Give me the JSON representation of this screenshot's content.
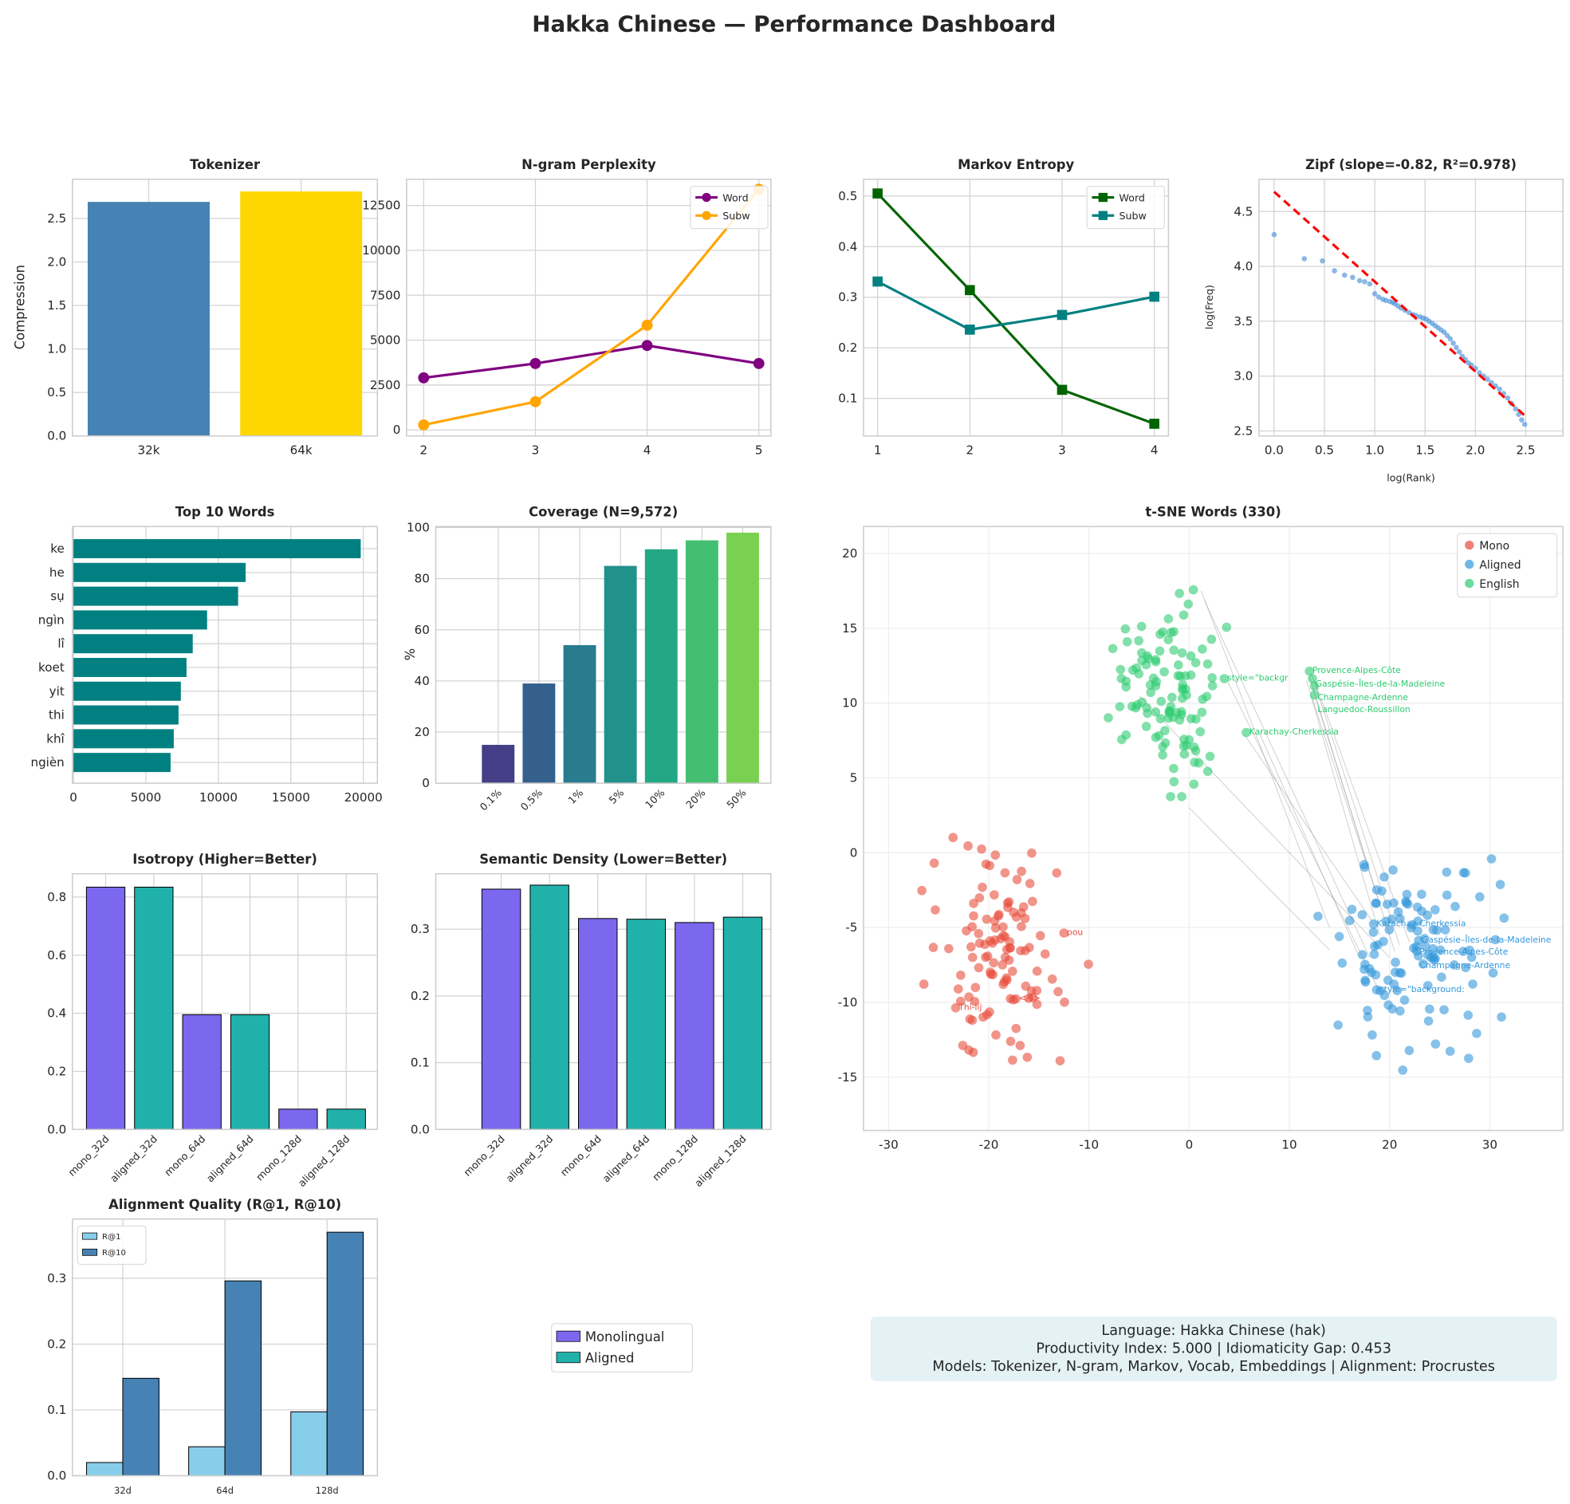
{
  "title": "Hakka Chinese — Performance Dashboard",
  "colors": {
    "grid": "#d3d3d3",
    "frame": "#cccccc"
  },
  "chart_data": [
    {
      "type": "bar",
      "title": "Tokenizer",
      "ylabel": "Compression",
      "categories": [
        "32k",
        "64k"
      ],
      "values": [
        2.69,
        2.81
      ],
      "colors": [
        "#4682b4",
        "#ffd700"
      ],
      "yticks": [
        "0.0",
        "0.5",
        "1.0",
        "1.5",
        "2.0",
        "2.5"
      ],
      "ylim": [
        0,
        2.95
      ],
      "grid": true
    },
    {
      "type": "line",
      "title": "N-gram Perplexity",
      "x": [
        2,
        3,
        4,
        5
      ],
      "series": [
        {
          "name": "Word",
          "values": [
            2900,
            3700,
            4700,
            3700
          ],
          "color": "#800080",
          "marker": "circle"
        },
        {
          "name": "Subw",
          "values": [
            280,
            1570,
            5830,
            13400
          ],
          "color": "#ffa500",
          "marker": "circle"
        }
      ],
      "xticks": [
        "2",
        "3",
        "4",
        "5"
      ],
      "yticks": [
        "0",
        "2500",
        "5000",
        "7500",
        "10000",
        "12500"
      ],
      "legend": "top-right",
      "grid": true
    },
    {
      "type": "line",
      "title": "Markov Entropy",
      "x": [
        1,
        2,
        3,
        4
      ],
      "series": [
        {
          "name": "Word",
          "values": [
            0.505,
            0.314,
            0.117,
            0.05
          ],
          "color": "#006400",
          "marker": "square"
        },
        {
          "name": "Subw",
          "values": [
            0.331,
            0.236,
            0.265,
            0.301
          ],
          "color": "#008080",
          "marker": "square"
        }
      ],
      "xticks": [
        "1",
        "2",
        "3",
        "4"
      ],
      "yticks": [
        "0.1",
        "0.2",
        "0.3",
        "0.4",
        "0.5"
      ],
      "legend": "top-right",
      "grid": true
    },
    {
      "type": "scatter",
      "title": "Zipf (slope=-0.82, R²=0.978)",
      "xlabel": "log(Rank)",
      "ylabel": "log(Freq)",
      "points": [
        [
          0,
          4.29
        ],
        [
          0.3,
          4.07
        ],
        [
          0.48,
          4.05
        ],
        [
          0.6,
          3.96
        ],
        [
          0.7,
          3.92
        ],
        [
          0.78,
          3.9
        ],
        [
          0.85,
          3.87
        ],
        [
          0.9,
          3.86
        ],
        [
          0.95,
          3.84
        ],
        [
          1.0,
          3.75
        ],
        [
          1.04,
          3.72
        ],
        [
          1.08,
          3.7
        ],
        [
          1.11,
          3.69
        ],
        [
          1.15,
          3.68
        ],
        [
          1.18,
          3.67
        ],
        [
          1.2,
          3.66
        ],
        [
          1.23,
          3.64
        ],
        [
          1.26,
          3.62
        ],
        [
          1.3,
          3.6
        ],
        [
          1.34,
          3.58
        ],
        [
          1.38,
          3.56
        ],
        [
          1.41,
          3.55
        ],
        [
          1.45,
          3.54
        ],
        [
          1.48,
          3.53
        ],
        [
          1.51,
          3.52
        ],
        [
          1.54,
          3.5
        ],
        [
          1.57,
          3.48
        ],
        [
          1.6,
          3.46
        ],
        [
          1.63,
          3.44
        ],
        [
          1.66,
          3.42
        ],
        [
          1.69,
          3.4
        ],
        [
          1.72,
          3.37
        ],
        [
          1.75,
          3.34
        ],
        [
          1.78,
          3.3
        ],
        [
          1.81,
          3.26
        ],
        [
          1.84,
          3.22
        ],
        [
          1.87,
          3.18
        ],
        [
          1.9,
          3.15
        ],
        [
          1.93,
          3.12
        ],
        [
          1.96,
          3.1
        ],
        [
          2.0,
          3.07
        ],
        [
          2.04,
          3.03
        ],
        [
          2.08,
          3.0
        ],
        [
          2.12,
          2.97
        ],
        [
          2.16,
          2.94
        ],
        [
          2.2,
          2.91
        ],
        [
          2.24,
          2.88
        ],
        [
          2.28,
          2.84
        ],
        [
          2.32,
          2.8
        ],
        [
          2.36,
          2.75
        ],
        [
          2.4,
          2.7
        ],
        [
          2.43,
          2.65
        ],
        [
          2.46,
          2.6
        ],
        [
          2.49,
          2.56
        ]
      ],
      "point_color": "#4a90d9",
      "fit_line": {
        "x": [
          0,
          2.49
        ],
        "y": [
          4.68,
          2.64
        ],
        "color": "#ff0000",
        "style": "dashed"
      },
      "xticks": [
        "0.0",
        "0.5",
        "1.0",
        "1.5",
        "2.0",
        "2.5"
      ],
      "yticks": [
        "2.5",
        "3.0",
        "3.5",
        "4.0",
        "4.5"
      ],
      "grid": true
    },
    {
      "type": "bar",
      "orientation": "horizontal",
      "title": "Top 10 Words",
      "categories": [
        "ke",
        "he",
        "sụ",
        "ngìn",
        "lî",
        "koet",
        "yit",
        "thi",
        "khî",
        "ngièn"
      ],
      "values": [
        19820,
        11880,
        11360,
        9220,
        8230,
        7800,
        7410,
        7250,
        6920,
        6700
      ],
      "color": "#008080",
      "xticks": [
        "0",
        "5000",
        "10000",
        "15000",
        "20000"
      ],
      "grid": true
    },
    {
      "type": "bar",
      "title": "Coverage (N=9,572)",
      "ylabel": "%",
      "categories": [
        "0.1%",
        "0.5%",
        "1%",
        "5%",
        "10%",
        "20%",
        "50%"
      ],
      "values": [
        15,
        39,
        54,
        85,
        91.5,
        95,
        98
      ],
      "colors": [
        "#433e85",
        "#35608d",
        "#297b8e",
        "#21918c",
        "#22a884",
        "#43bf71",
        "#7ad151"
      ],
      "yticks": [
        "0",
        "20",
        "40",
        "60",
        "80",
        "100"
      ],
      "ylim": [
        0,
        100
      ],
      "grid": true
    },
    {
      "type": "scatter",
      "title": "t-SNE Words (330)",
      "clusters": [
        {
          "name": "Mono",
          "color": "#e74c3c",
          "count": 110,
          "x_range": [
            -29,
            -9
          ],
          "y_range": [
            -17,
            3
          ]
        },
        {
          "name": "Aligned",
          "color": "#3498db",
          "count": 110,
          "x_range": [
            10,
            34
          ],
          "y_range": [
            -15,
            3
          ]
        },
        {
          "name": "English",
          "color": "#2ecc71",
          "count": 110,
          "x_range": [
            -9,
            5
          ],
          "y_range": [
            1,
            20
          ]
        }
      ],
      "annotations": [
        {
          "text": "style=\"backgr",
          "x": 3.8,
          "y": 11.5,
          "cluster": 2
        },
        {
          "text": "Provence-Alpes-Côte",
          "x": 12.3,
          "y": 12.0,
          "cluster": 2
        },
        {
          "text": "Gaspésie–Îles-de-la-Madeleine",
          "x": 12.6,
          "y": 11.5,
          "cluster": 2
        },
        {
          "text": "Champagne-Ardenne",
          "x": 12.8,
          "y": 11.0,
          "cluster": 2
        },
        {
          "text": "Languedoc-Roussillon",
          "x": 12.8,
          "y": 10.4,
          "cluster": 2
        },
        {
          "text": "Karachay-Cherkessia",
          "x": 6.0,
          "y": 7.9,
          "cluster": 2
        },
        {
          "text": "Karachay-Cherkessia",
          "x": 18.7,
          "y": -4.9,
          "cluster": 1
        },
        {
          "text": "Gaspésie–Îles-de-la-Madeleine",
          "x": 23.2,
          "y": -6.0,
          "cluster": 1
        },
        {
          "text": "Provence-Alpes-Côte",
          "x": 23.0,
          "y": -6.4,
          "cluster": 1
        },
        {
          "text": "Champagne-Ardenne",
          "x": 23.0,
          "y": -6.7,
          "cluster": 1
        },
        {
          "text": "style=\"background:",
          "x": 19.0,
          "y": -9.3,
          "cluster": 1
        },
        {
          "text": "Thi-lij",
          "x": -23.0,
          "y": -10.5,
          "cluster": 0
        },
        {
          "text": "</s>",
          "x": -17.0,
          "y": -9.9,
          "cluster": 0
        },
        {
          "text": "pou",
          "x": -12.2,
          "y": -5.5,
          "cluster": 0
        }
      ],
      "links": [
        [
          [
            1.2,
            17.5
          ],
          [
            14,
            -5
          ]
        ],
        [
          [
            1.5,
            16.9
          ],
          [
            18,
            -7
          ]
        ],
        [
          [
            3.8,
            11.5
          ],
          [
            19,
            -9.3
          ]
        ],
        [
          [
            5.5,
            7.9
          ],
          [
            18.5,
            -4.8
          ]
        ],
        [
          [
            -5,
            10.5
          ],
          [
            20,
            -7
          ]
        ],
        [
          [
            12.2,
            12.0
          ],
          [
            21,
            -6.2
          ]
        ],
        [
          [
            12.5,
            11.5
          ],
          [
            22,
            -6.0
          ]
        ],
        [
          [
            12.3,
            11.0
          ],
          [
            20.5,
            -6.6
          ]
        ],
        [
          [
            12.2,
            10.4
          ],
          [
            19,
            -5.5
          ]
        ],
        [
          [
            12.0,
            11.8
          ],
          [
            17.8,
            -0.8
          ]
        ],
        [
          [
            7,
            8
          ],
          [
            17,
            -7
          ]
        ],
        [
          [
            11.7,
            11.5
          ],
          [
            18.8,
            -3
          ]
        ],
        [
          [
            0,
            3
          ],
          [
            14,
            -6.5
          ]
        ]
      ],
      "xticks": [
        "-30",
        "-20",
        "-10",
        "0",
        "10",
        "20",
        "30"
      ],
      "yticks": [
        "-15",
        "-10",
        "-5",
        "0",
        "5",
        "10",
        "15",
        "20"
      ],
      "legend": "top-right",
      "grid": true
    },
    {
      "type": "bar",
      "title": "Isotropy (Higher=Better)",
      "categories": [
        "mono_32d",
        "aligned_32d",
        "mono_64d",
        "aligned_64d",
        "mono_128d",
        "aligned_128d"
      ],
      "values": [
        0.834,
        0.834,
        0.395,
        0.395,
        0.07,
        0.07
      ],
      "colors": [
        "#7b68ee",
        "#20b2aa",
        "#7b68ee",
        "#20b2aa",
        "#7b68ee",
        "#20b2aa"
      ],
      "yticks": [
        "0.0",
        "0.2",
        "0.4",
        "0.6",
        "0.8"
      ],
      "grid": true
    },
    {
      "type": "bar",
      "title": "Semantic Density (Lower=Better)",
      "categories": [
        "mono_32d",
        "aligned_32d",
        "mono_64d",
        "aligned_64d",
        "mono_128d",
        "aligned_128d"
      ],
      "values": [
        0.36,
        0.366,
        0.316,
        0.315,
        0.31,
        0.318
      ],
      "colors": [
        "#7b68ee",
        "#20b2aa",
        "#7b68ee",
        "#20b2aa",
        "#7b68ee",
        "#20b2aa"
      ],
      "yticks": [
        "0.0",
        "0.1",
        "0.2",
        "0.3"
      ],
      "grid": true
    },
    {
      "type": "bar",
      "title": "Alignment Quality (R@1, R@10)",
      "categories": [
        "32d",
        "64d",
        "128d"
      ],
      "series": [
        {
          "name": "R@1",
          "values": [
            0.02,
            0.044,
            0.097
          ],
          "color": "#87ceeb"
        },
        {
          "name": "R@10",
          "values": [
            0.148,
            0.296,
            0.37
          ],
          "color": "#4682b4"
        }
      ],
      "yticks": [
        "0.0",
        "0.1",
        "0.2",
        "0.3"
      ],
      "legend": "top-left",
      "grid": true
    }
  ],
  "shared_legend": [
    {
      "name": "Monolingual",
      "color": "#7b68ee"
    },
    {
      "name": "Aligned",
      "color": "#20b2aa"
    }
  ],
  "info_box": {
    "line1": "Language: Hakka Chinese (hak)",
    "line2": "Productivity Index: 5.000  |  Idiomaticity Gap: 0.453",
    "line3": "Models: Tokenizer, N-gram, Markov, Vocab, Embeddings  |  Alignment: Procrustes"
  }
}
